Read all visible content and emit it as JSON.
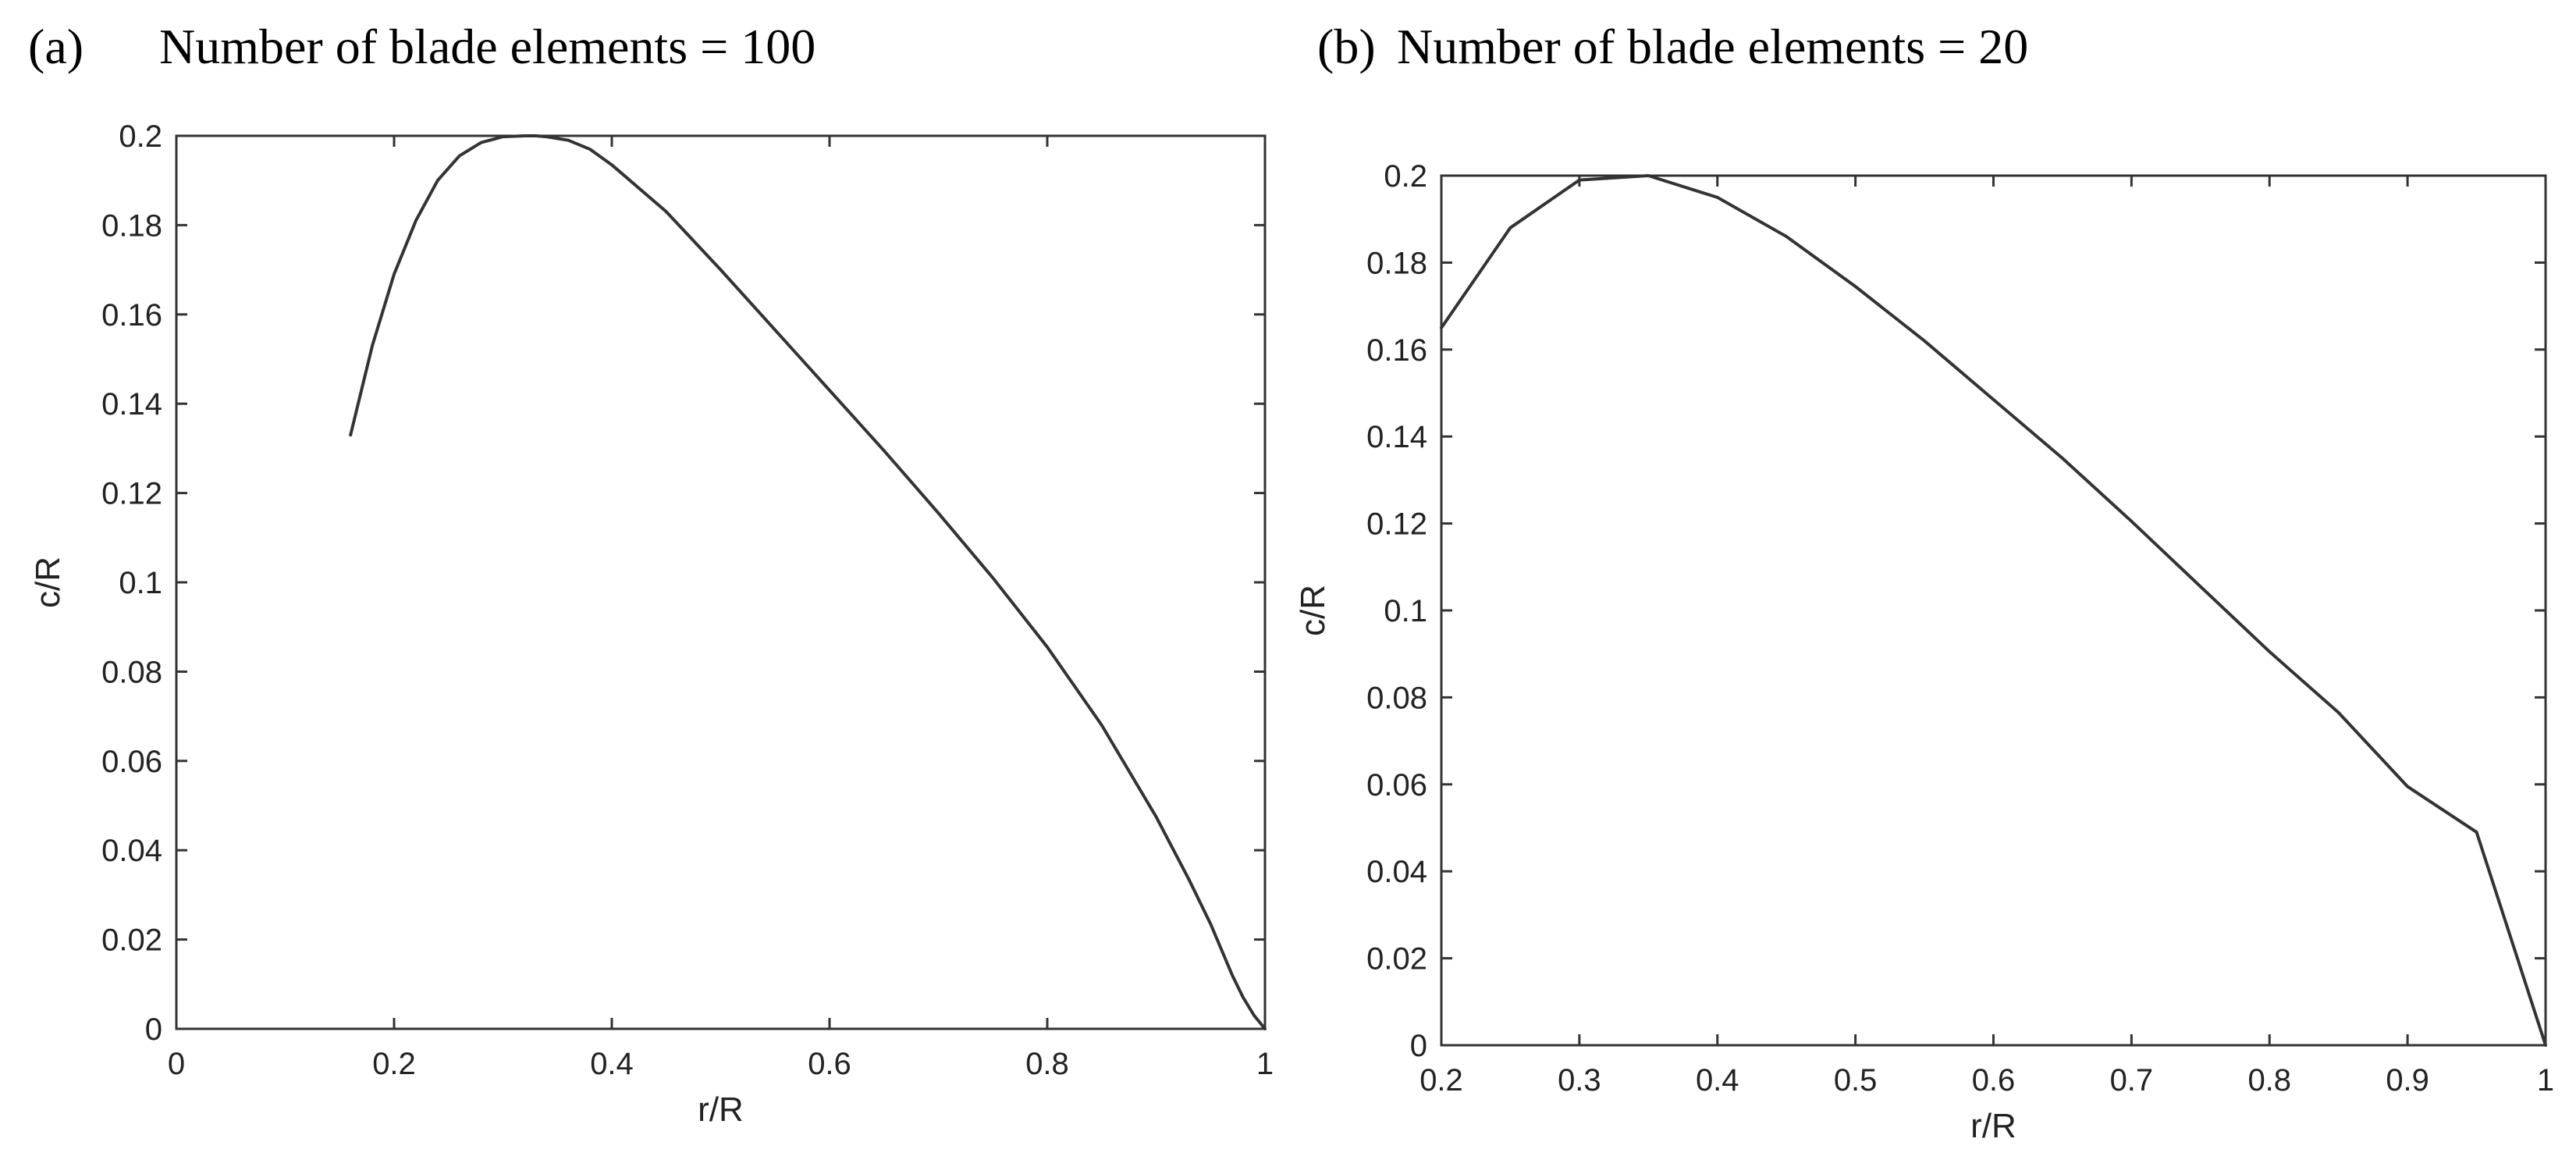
{
  "chart_data": [
    {
      "type": "line",
      "panel": "(a)",
      "title": "Number of blade elements = 100",
      "xlabel": "r/R",
      "ylabel": "c/R",
      "xlim": [
        0,
        1
      ],
      "ylim": [
        0,
        0.2
      ],
      "xticks": [
        "0",
        "0.2",
        "0.4",
        "0.6",
        "0.8",
        "1"
      ],
      "yticks": [
        "0",
        "0.02",
        "0.04",
        "0.06",
        "0.08",
        "0.1",
        "0.12",
        "0.14",
        "0.16",
        "0.18",
        "0.2"
      ],
      "grid": false,
      "series": [
        {
          "x": [
            0.16,
            0.18,
            0.2,
            0.22,
            0.24,
            0.26,
            0.28,
            0.3,
            0.32,
            0.33,
            0.34,
            0.36,
            0.38,
            0.4,
            0.45,
            0.5,
            0.55,
            0.6,
            0.65,
            0.7,
            0.75,
            0.8,
            0.85,
            0.9,
            0.93,
            0.95,
            0.97,
            0.98,
            0.99,
            0.995,
            1.0
          ],
          "y": [
            0.133,
            0.153,
            0.169,
            0.181,
            0.19,
            0.1955,
            0.1985,
            0.1998,
            0.2,
            0.2,
            0.1998,
            0.199,
            0.197,
            0.1935,
            0.183,
            0.17,
            0.1565,
            0.143,
            0.1295,
            0.1155,
            0.101,
            0.0855,
            0.068,
            0.0475,
            0.0335,
            0.0235,
            0.012,
            0.007,
            0.003,
            0.0015,
            0.0
          ]
        }
      ]
    },
    {
      "type": "line",
      "panel": "(b)",
      "title": "Number of blade elements = 20",
      "xlabel": "r/R",
      "ylabel": "c/R",
      "xlim": [
        0.2,
        1
      ],
      "ylim": [
        0,
        0.2
      ],
      "xticks": [
        "0.2",
        "0.3",
        "0.4",
        "0.5",
        "0.6",
        "0.7",
        "0.8",
        "0.9",
        "1"
      ],
      "yticks": [
        "0",
        "0.02",
        "0.04",
        "0.06",
        "0.08",
        "0.1",
        "0.12",
        "0.14",
        "0.16",
        "0.18",
        "0.2"
      ],
      "grid": false,
      "series": [
        {
          "x": [
            0.2,
            0.25,
            0.3,
            0.35,
            0.4,
            0.45,
            0.5,
            0.55,
            0.6,
            0.65,
            0.7,
            0.75,
            0.8,
            0.85,
            0.9,
            0.95,
            1.0
          ],
          "y": [
            0.165,
            0.188,
            0.199,
            0.2,
            0.195,
            0.186,
            0.1745,
            0.162,
            0.1485,
            0.135,
            0.1205,
            0.1055,
            0.0905,
            0.0765,
            0.0595,
            0.049,
            0.0
          ]
        }
      ]
    }
  ],
  "colors": {
    "line": "#333333",
    "axis": "#333333",
    "text": "#222222"
  }
}
